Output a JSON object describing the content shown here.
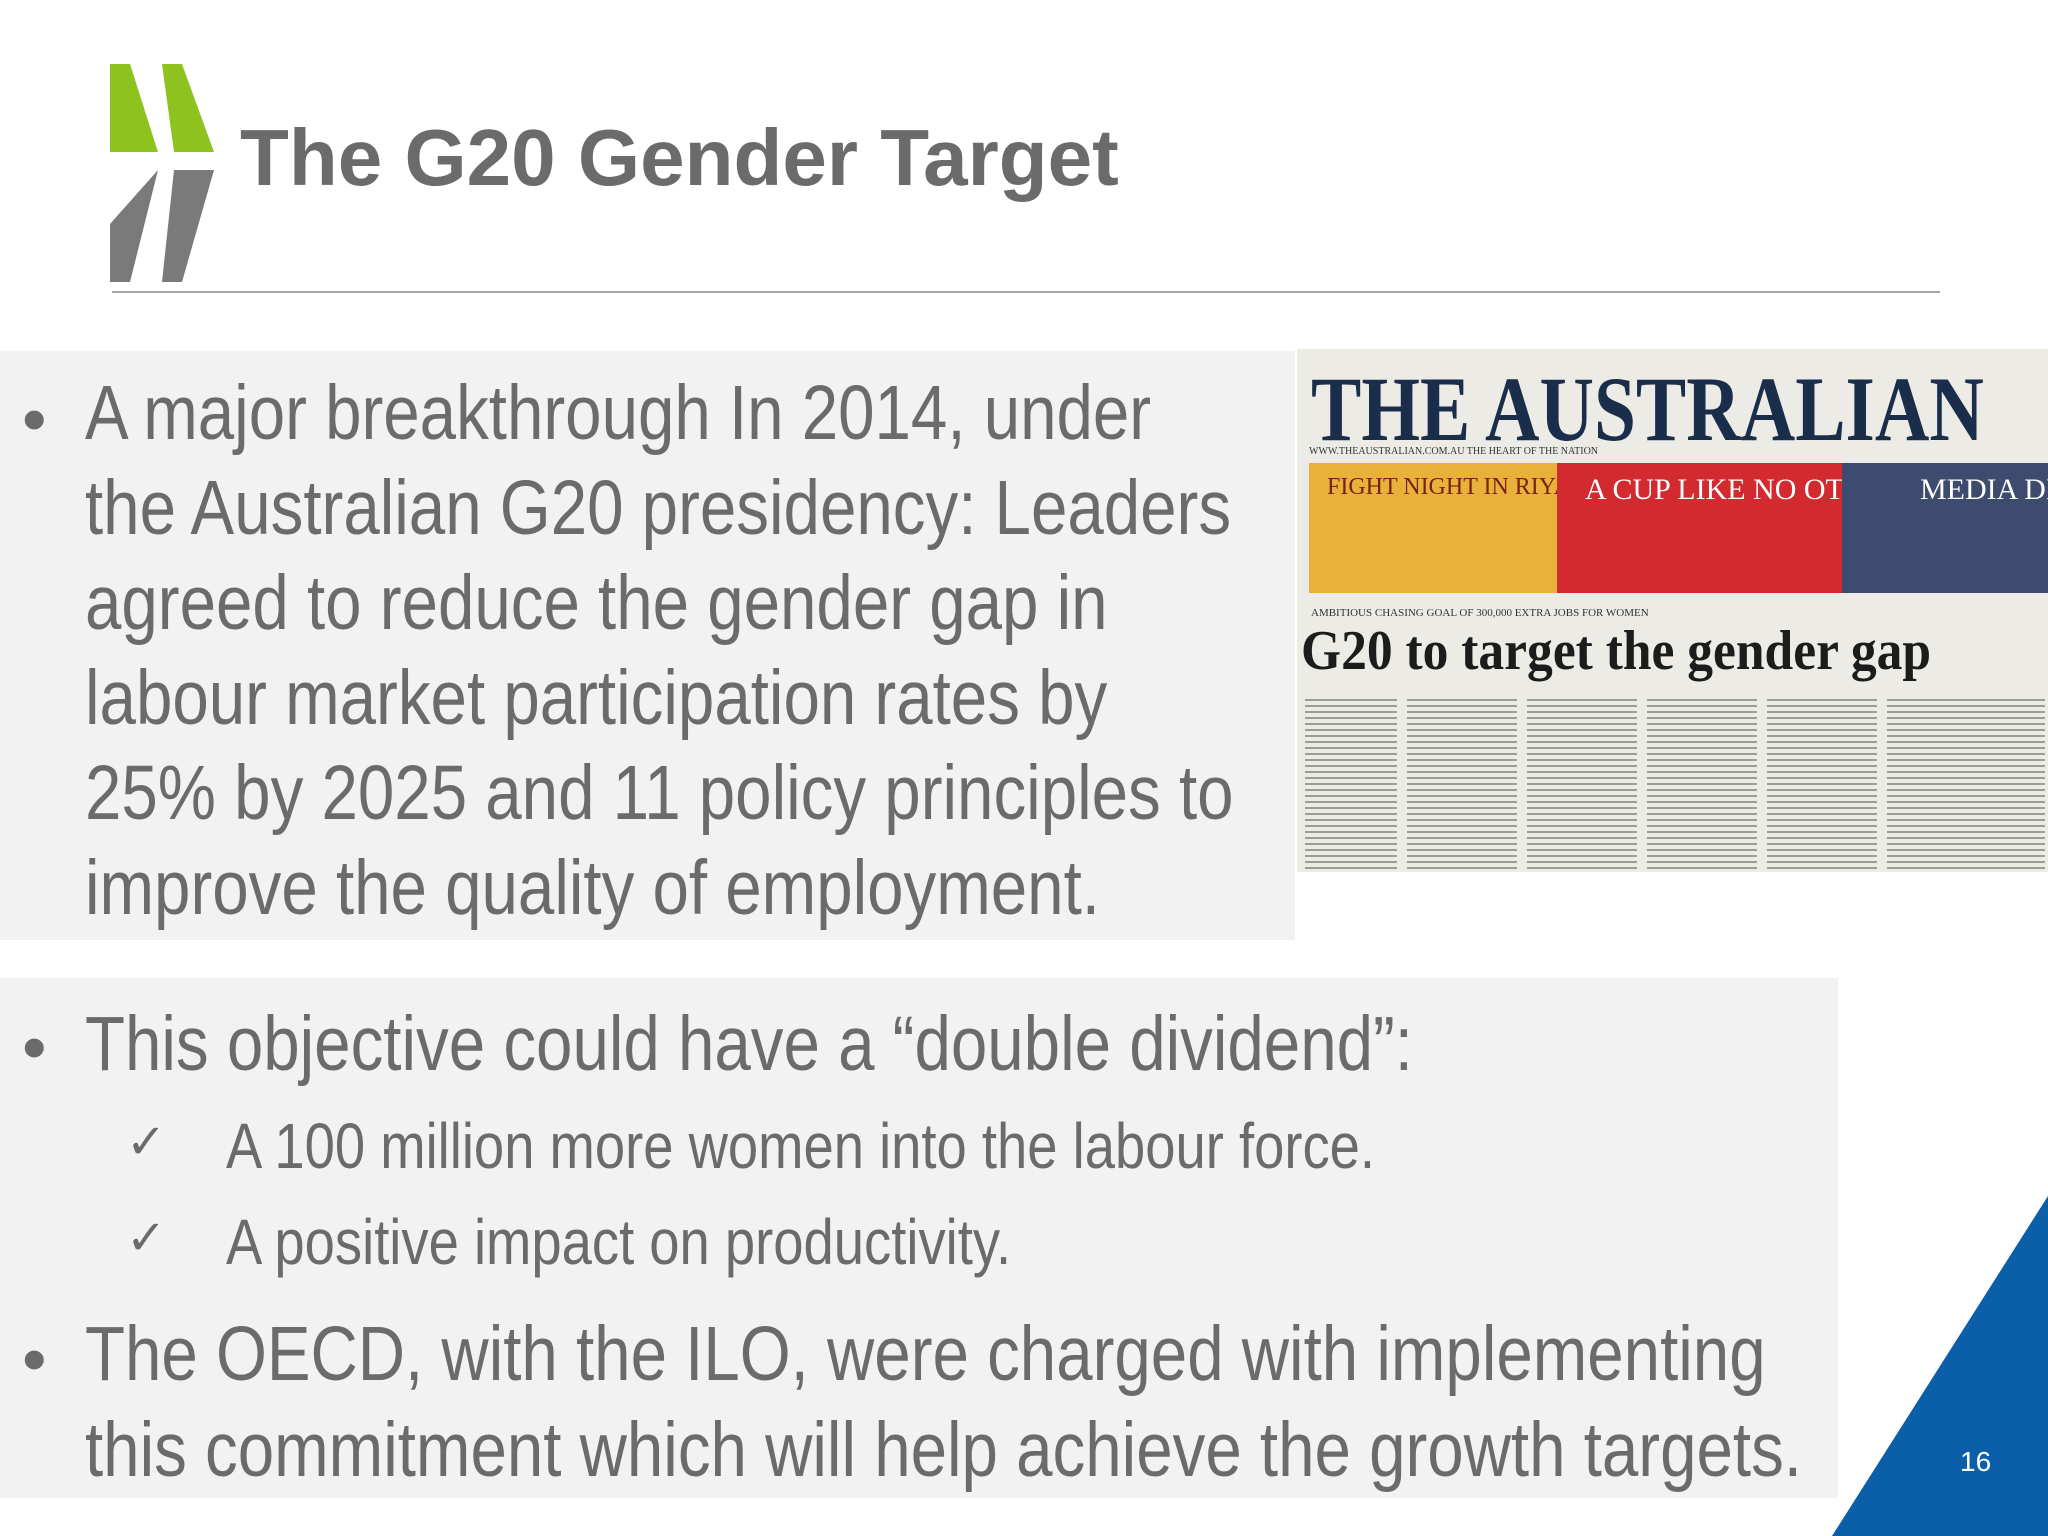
{
  "slide": {
    "title": "The G20 Gender Target",
    "page_number": "16",
    "colors": {
      "chevron_green": "#8dc21f",
      "chevron_gray": "#7a7a7a",
      "text_gray": "#6b6b6b",
      "box_background": "#f2f2f2",
      "corner_blue": "#0b5ea8"
    }
  },
  "bullets": {
    "bullet_symbol": "•",
    "check_symbol": "✓",
    "first": "A major breakthrough In 2014, under the Australian G20 presidency: Leaders agreed to reduce the gender gap in labour market participation rates by 25% by 2025 and 11 policy principles to improve the quality of employment.",
    "second": "This objective could have a “double dividend”:",
    "sub_items": [
      "A 100 million more women into the labour force.",
      "A positive impact on productivity."
    ],
    "third": " The OECD, with the ILO, were charged with implementing this commitment which will help achieve the growth targets."
  },
  "newspaper": {
    "masthead": "THE AUSTRALIAN",
    "tagline": "WWW.THEAUSTRALIAN.COM.AU   THE HEART OF THE NATION",
    "banner_1": "FIGHT NIGHT IN RIYADH",
    "banner_2": "A CUP LIKE NO OTHER",
    "banner_3": "MEDIA DIARY",
    "kicker": "AMBITIOUS CHASING GOAL OF 300,000 EXTRA JOBS FOR WOMEN",
    "headline": "G20 to target the gender gap"
  }
}
